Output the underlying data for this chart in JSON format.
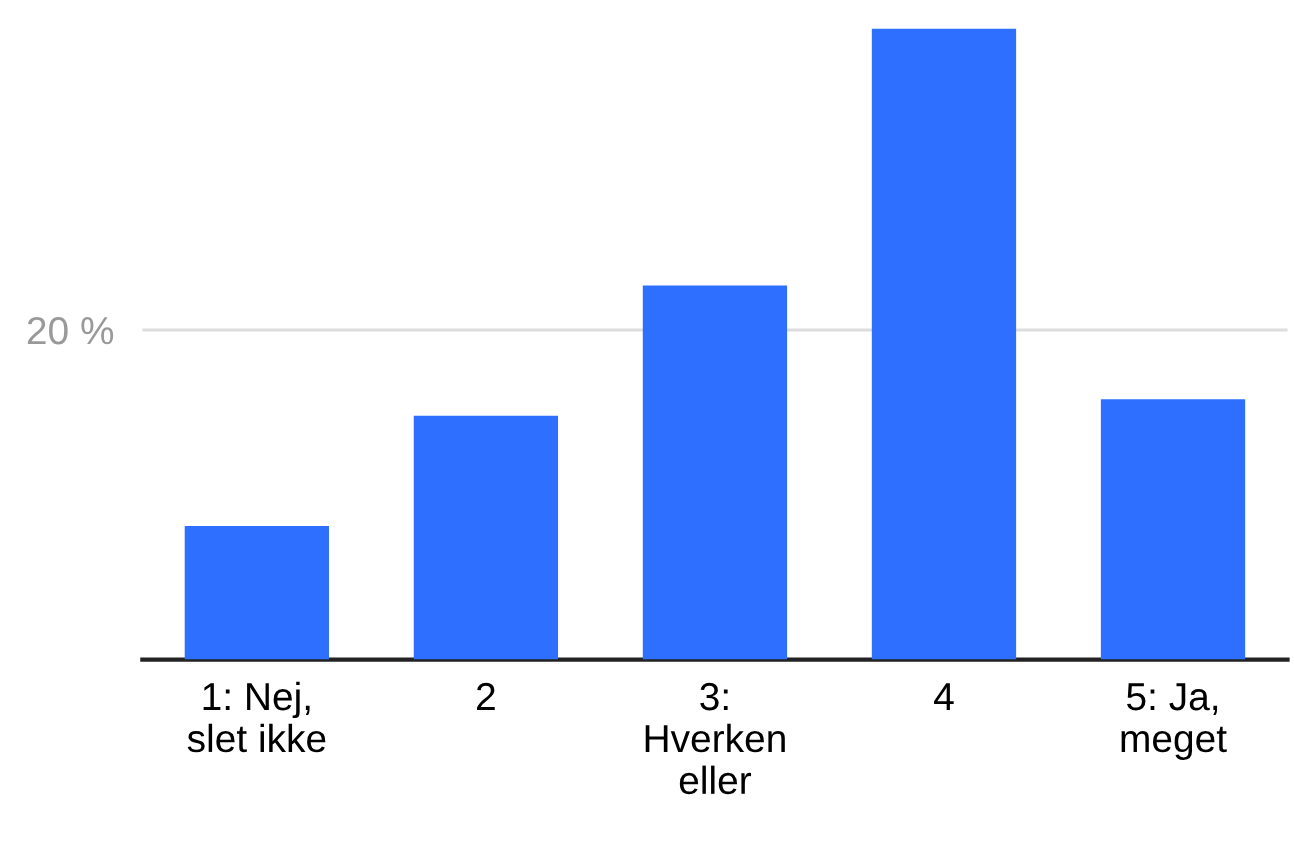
{
  "chart_data": {
    "type": "bar",
    "categories": [
      "1: Nej,\nslet ikke",
      "2",
      "3:\nHverken\neller",
      "4",
      "5: Ja,\nmeget"
    ],
    "values": [
      8.1,
      14.8,
      22.7,
      38.3,
      15.8
    ],
    "color": "#2f6fff",
    "ylim": [
      0,
      38.3
    ],
    "yticks": [
      {
        "value": 20,
        "label": "20 %"
      }
    ],
    "grid": "y"
  }
}
